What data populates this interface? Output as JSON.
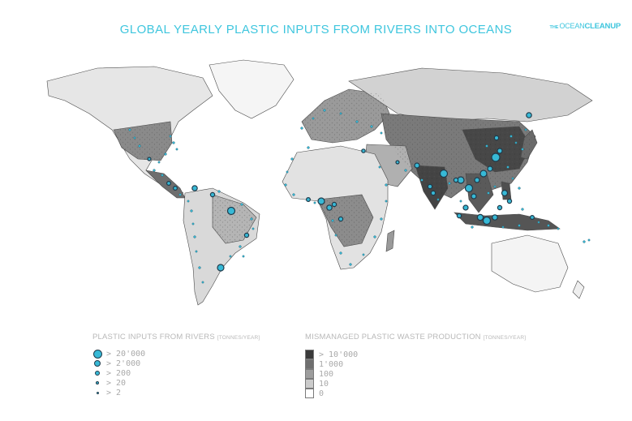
{
  "title": "GLOBAL YEARLY PLASTIC INPUTS FROM RIVERS INTO OCEANS",
  "logo": {
    "small": "THE",
    "ocean": "OCEAN",
    "cleanup": "CLEANUP"
  },
  "colors": {
    "accent": "#3fc6de",
    "river_dot": "#37b9d6",
    "dot_outline": "#1f3a4a",
    "land_dark": "#3c3c3c",
    "land_light": "#f2f2f2"
  },
  "legend_rivers": {
    "heading": "PLASTIC INPUTS FROM RIVERS",
    "unit": "[TONNES/YEAR]",
    "items": [
      {
        "label": "> 20'000"
      },
      {
        "label": "> 2'000"
      },
      {
        "label": "> 200"
      },
      {
        "label": "> 20"
      },
      {
        "label": "> 2"
      }
    ]
  },
  "legend_waste": {
    "heading": "MISMANAGED PLASTIC WASTE PRODUCTION",
    "unit": "[TONNES/YEAR]",
    "items": [
      {
        "label": "> 10'000",
        "color": "#3a3a3a"
      },
      {
        "label": "1'000",
        "color": "#6f6f6f"
      },
      {
        "label": "100",
        "color": "#9d9d9d"
      },
      {
        "label": "10",
        "color": "#cbcbcb"
      },
      {
        "label": "0",
        "color": "#ffffff"
      }
    ]
  }
}
